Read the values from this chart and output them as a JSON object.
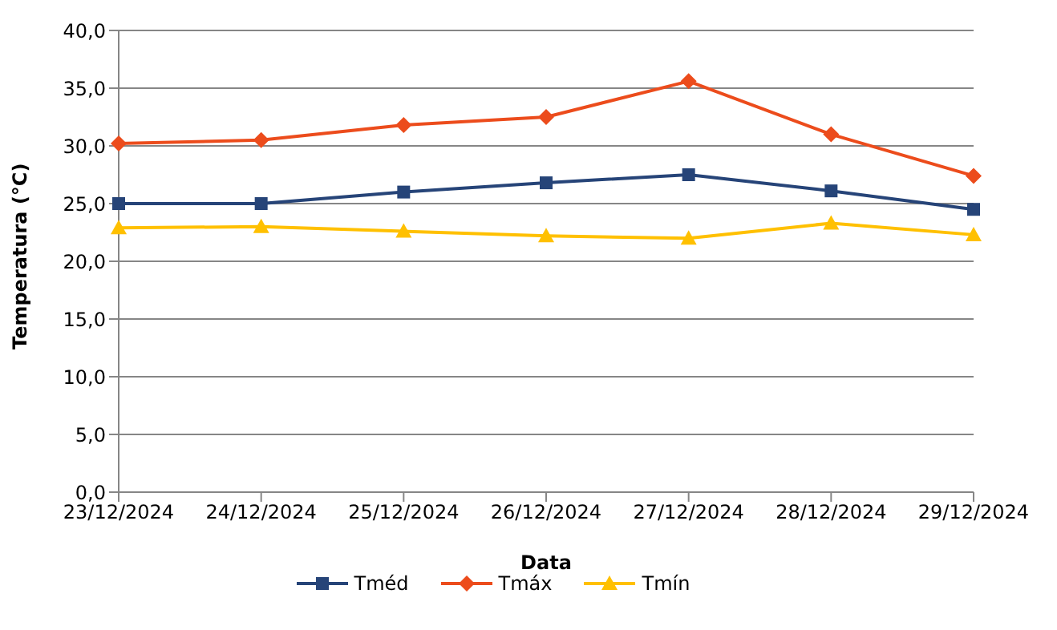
{
  "chart_data": {
    "type": "line",
    "xlabel": "Data",
    "ylabel": "Temperatura (°C)",
    "categories": [
      "23/12/2024",
      "24/12/2024",
      "25/12/2024",
      "26/12/2024",
      "27/12/2024",
      "28/12/2024",
      "29/12/2024"
    ],
    "series": [
      {
        "name": "Tméd",
        "color": "#264478",
        "marker": "square",
        "values": [
          25.0,
          25.0,
          26.0,
          26.8,
          27.5,
          26.1,
          24.5
        ]
      },
      {
        "name": "Tmáx",
        "color": "#ec4c1c",
        "marker": "diamond",
        "values": [
          30.2,
          30.5,
          31.8,
          32.5,
          35.6,
          31.0,
          27.4
        ]
      },
      {
        "name": "Tmín",
        "color": "#ffc000",
        "marker": "triangle",
        "values": [
          22.9,
          23.0,
          22.6,
          22.2,
          22.0,
          23.3,
          22.3
        ]
      }
    ],
    "ylim": [
      0,
      40
    ],
    "yticks": [
      {
        "value": 0,
        "label": "0,0"
      },
      {
        "value": 5,
        "label": "5,0"
      },
      {
        "value": 10,
        "label": "10,0"
      },
      {
        "value": 15,
        "label": "15,0"
      },
      {
        "value": 20,
        "label": "20,0"
      },
      {
        "value": 25,
        "label": "25,0"
      },
      {
        "value": 30,
        "label": "30,0"
      },
      {
        "value": 35,
        "label": "35,0"
      },
      {
        "value": 40,
        "label": "40,0"
      }
    ],
    "grid": "y",
    "legend": "bottom",
    "line_style": "solid"
  }
}
